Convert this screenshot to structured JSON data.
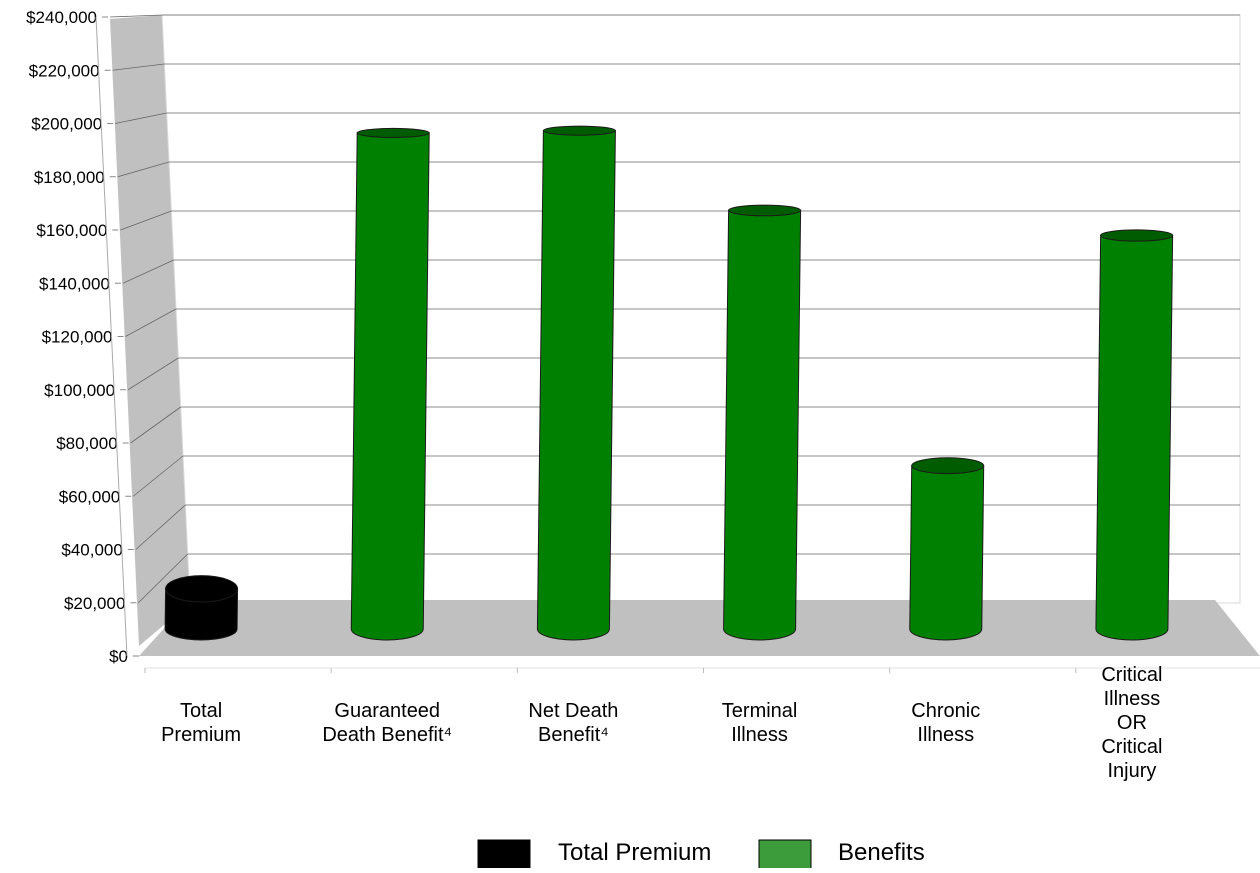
{
  "chart_data": {
    "type": "bar",
    "style": "3d-cylinder",
    "categories": [
      [
        "Total",
        "Premium"
      ],
      [
        "Guaranteed",
        "Death Benefit⁴"
      ],
      [
        "Net Death",
        "Benefit⁴"
      ],
      [
        "Terminal",
        "Illness"
      ],
      [
        "Chronic",
        "Illness"
      ],
      [
        "Critical",
        "Illness",
        "OR",
        "Critical",
        "Injury"
      ]
    ],
    "series": [
      {
        "name": "Total Premium",
        "values": [
          8000,
          null,
          null,
          null,
          null,
          null
        ],
        "color": "#000000"
      },
      {
        "name": "Benefits",
        "values": [
          null,
          208000,
          209000,
          174000,
          62000,
          163000
        ],
        "color": "#008000"
      }
    ],
    "ylim": [
      0,
      240000
    ],
    "yticks": [
      0,
      20000,
      40000,
      60000,
      80000,
      100000,
      120000,
      140000,
      160000,
      180000,
      200000,
      220000,
      240000
    ],
    "ytick_labels": [
      "$0",
      "$20,000",
      "$40,000",
      "$60,000",
      "$80,000",
      "$100,000",
      "$120,000",
      "$140,000",
      "$160,000",
      "$180,000",
      "$200,000",
      "$220,000",
      "$240,000"
    ],
    "grid": true,
    "legend": {
      "position": "bottom-center",
      "entries": [
        {
          "label": "Total Premium",
          "color": "#000000"
        },
        {
          "label": "Benefits",
          "color": "#3c9c3c"
        }
      ]
    },
    "colors": {
      "wall": "#c0c0c0",
      "floor": "#c0c0c0",
      "grid": "#666666"
    }
  }
}
